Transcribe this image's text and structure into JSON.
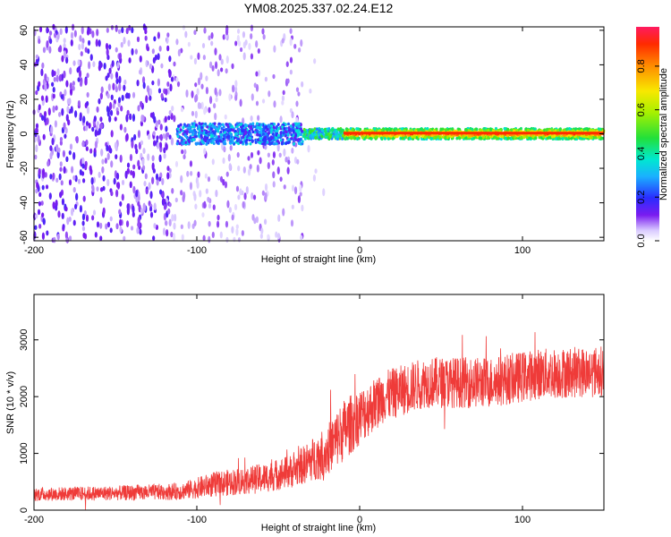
{
  "title": "YM08.2025.337.02.24.E12",
  "chart_data": [
    {
      "type": "heatmap",
      "xlabel": "Height of straight line (km)",
      "ylabel": "Frequency (Hz)",
      "xlim": [
        -200,
        150
      ],
      "ylim": [
        -62,
        62
      ],
      "xticks": [
        -200,
        -100,
        0,
        100
      ],
      "yticks": [
        -60,
        -40,
        -20,
        0,
        20,
        40,
        60
      ],
      "colorbar": {
        "label": "Normalized spectral amplitude",
        "range": [
          0.0,
          0.98
        ],
        "ticks": [
          0.0,
          0.2,
          0.4,
          0.6,
          0.8
        ]
      },
      "description_regions": [
        {
          "x_range": [
            -200,
            -115
          ],
          "freq_range": [
            -62,
            62
          ],
          "level": 0.12
        },
        {
          "x_range": [
            -115,
            -35
          ],
          "freq_range": [
            -62,
            62
          ],
          "level": 0.06
        },
        {
          "x_range": [
            -112,
            -35
          ],
          "freq_range": [
            -5,
            5
          ],
          "level": 0.2
        },
        {
          "x_range": [
            -35,
            150
          ],
          "freq_range": [
            -4,
            4
          ],
          "level": 0.6
        }
      ],
      "grid": false
    },
    {
      "type": "line",
      "xlabel": "Height of straight line (km)",
      "ylabel": "SNR (10 * v/v)",
      "xlim": [
        -200,
        150
      ],
      "ylim": [
        0,
        3800
      ],
      "xticks": [
        -200,
        -100,
        0,
        100
      ],
      "yticks": [
        0,
        1000,
        2000,
        3000
      ],
      "series": [
        {
          "color": "#ef3b39",
          "envelope": [
            {
              "x": -200,
              "mean": 280,
              "spread": 120
            },
            {
              "x": -150,
              "mean": 300,
              "spread": 130
            },
            {
              "x": -110,
              "mean": 330,
              "spread": 150
            },
            {
              "x": -90,
              "mean": 450,
              "spread": 220
            },
            {
              "x": -60,
              "mean": 560,
              "spread": 260
            },
            {
              "x": -40,
              "mean": 700,
              "spread": 300
            },
            {
              "x": -20,
              "mean": 1050,
              "spread": 450
            },
            {
              "x": -10,
              "mean": 1400,
              "spread": 550
            },
            {
              "x": 0,
              "mean": 1650,
              "spread": 500
            },
            {
              "x": 15,
              "mean": 2000,
              "spread": 450
            },
            {
              "x": 40,
              "mean": 2250,
              "spread": 450
            },
            {
              "x": 80,
              "mean": 2250,
              "spread": 450
            },
            {
              "x": 110,
              "mean": 2400,
              "spread": 450
            },
            {
              "x": 150,
              "mean": 2450,
              "spread": 450
            }
          ]
        }
      ],
      "grid": false
    }
  ]
}
